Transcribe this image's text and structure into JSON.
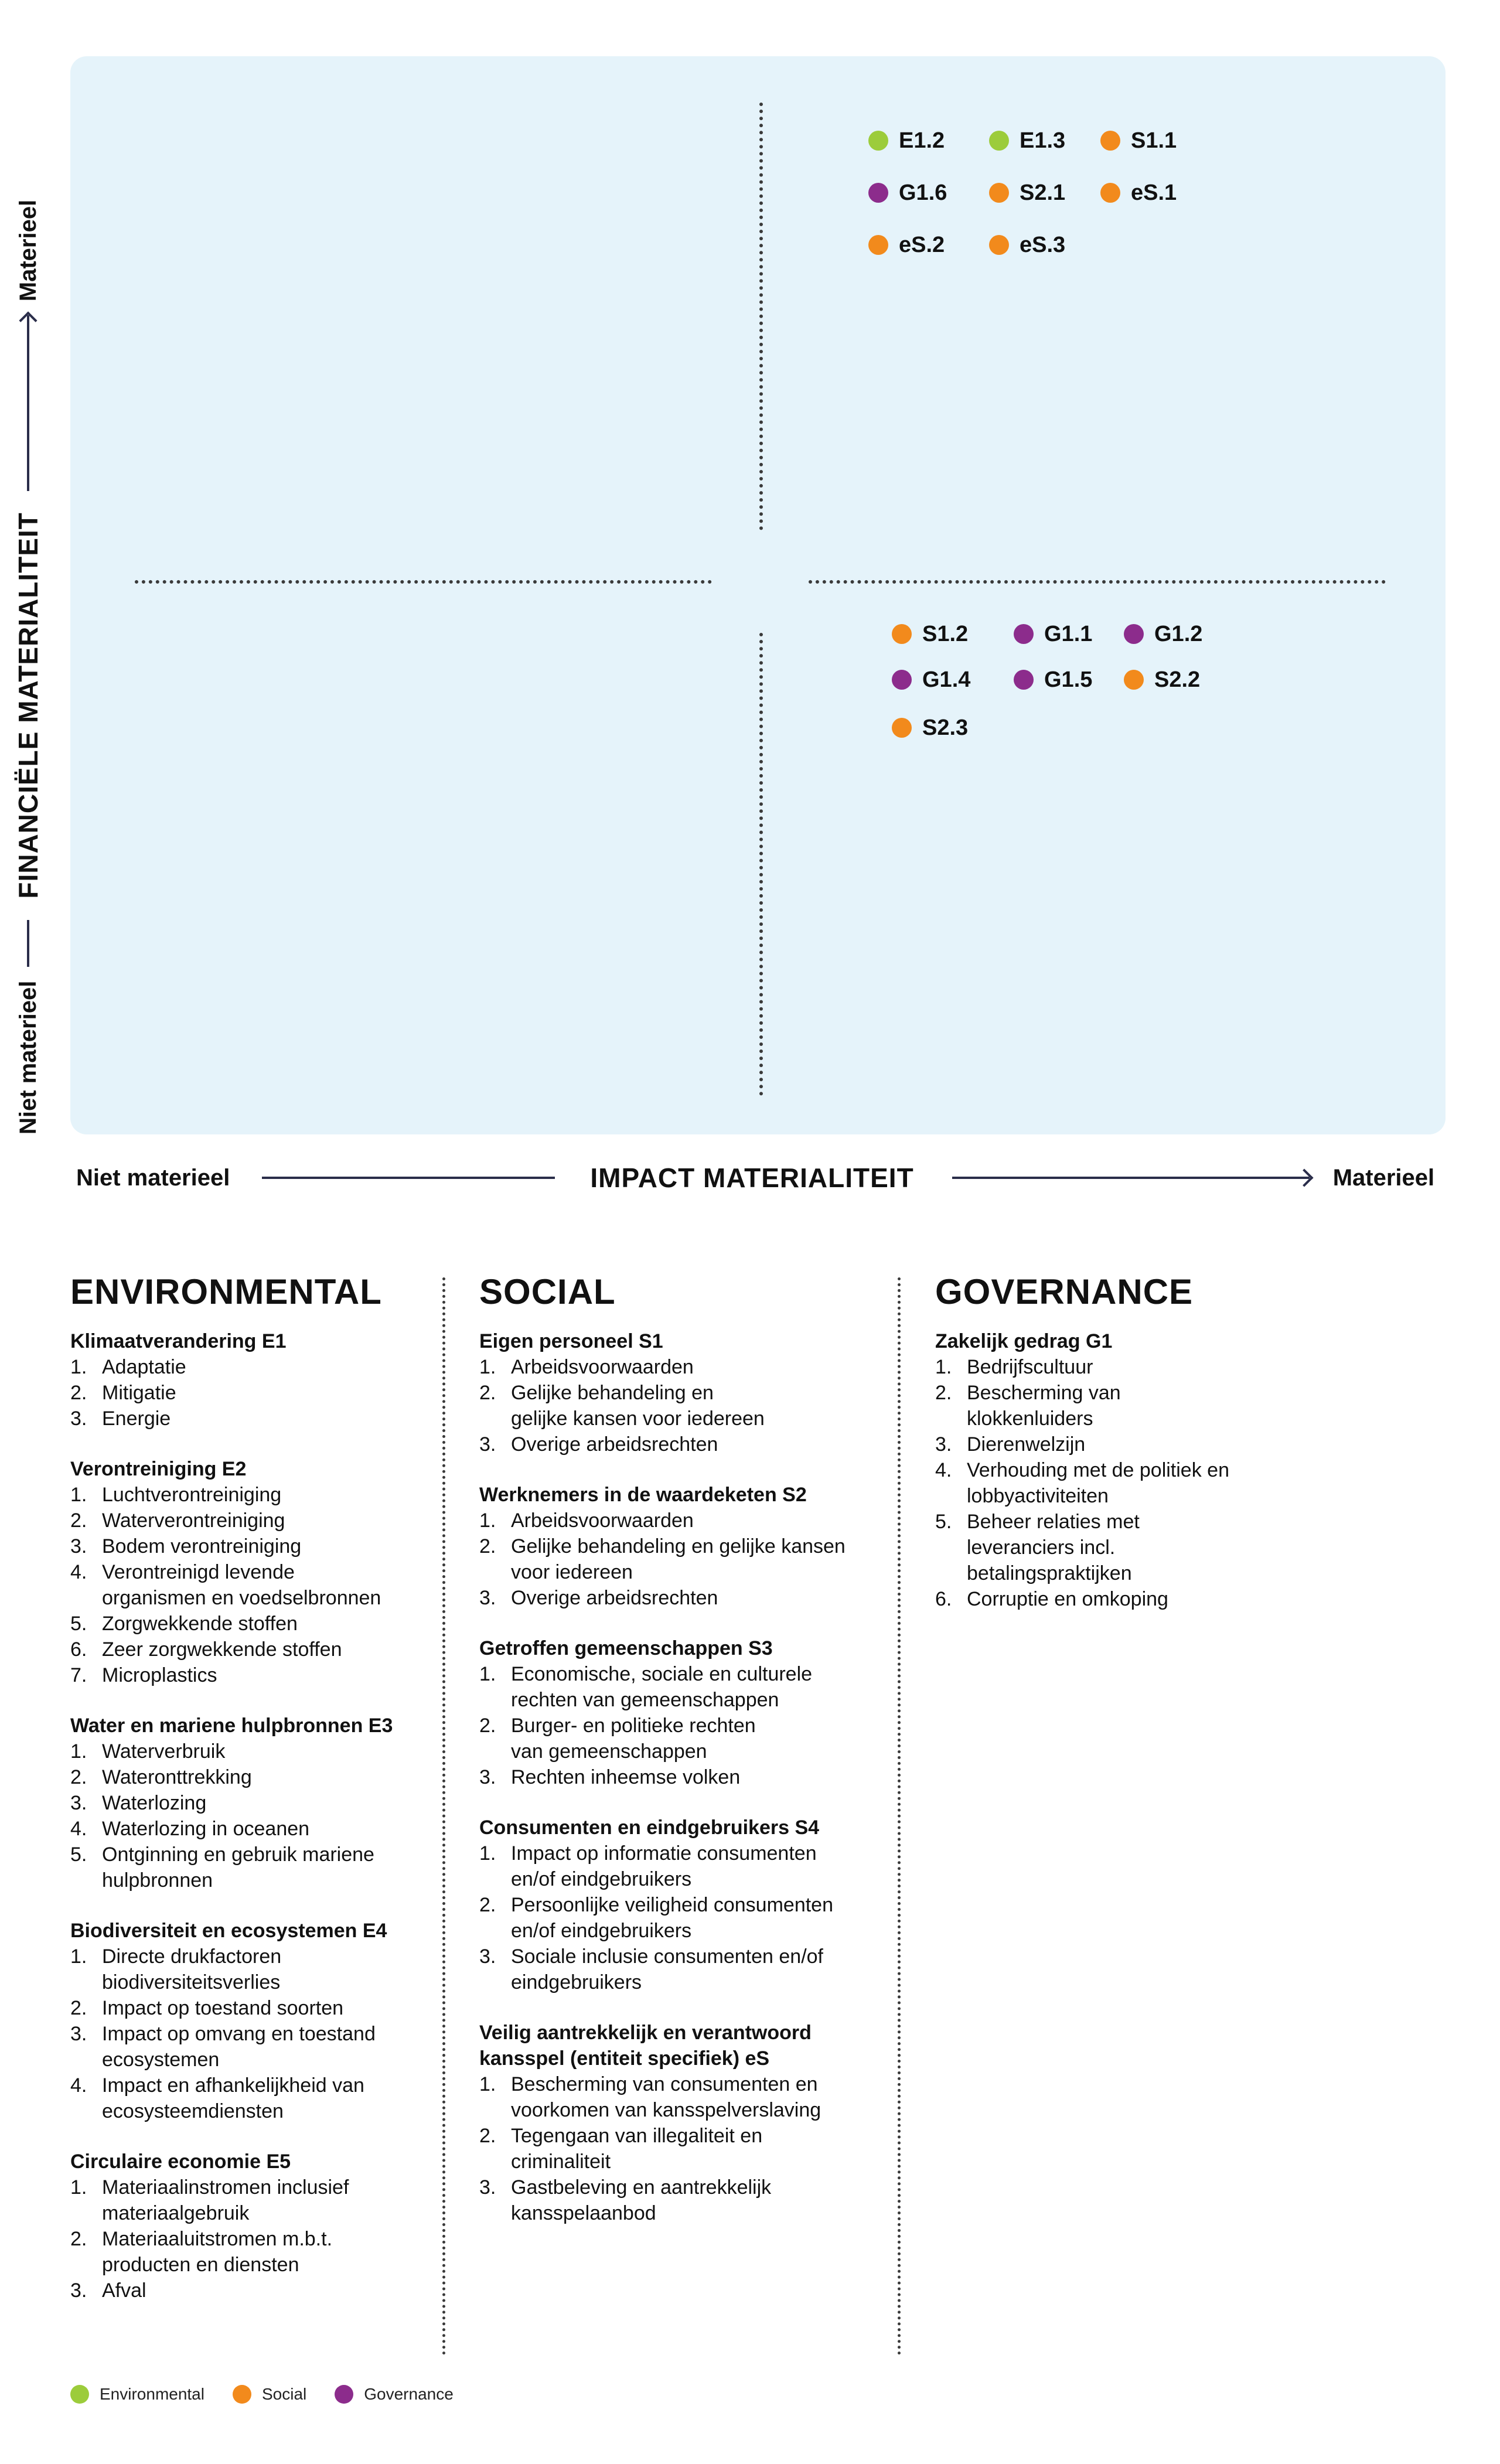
{
  "colors": {
    "environmental": "#9ccc3b",
    "social": "#f28a1c",
    "governance": "#8c2c8c",
    "panel": "#e5f3fa",
    "axis_line": "#2a2d4a"
  },
  "axes": {
    "y_title": "FINANCIËLE MATERIALITEIT",
    "y_low": "Niet materieel",
    "y_high": "Materieel",
    "x_title": "IMPACT MATERIALITEIT",
    "x_low": "Niet materieel",
    "x_high": "Materieel"
  },
  "chart_data": {
    "type": "scatter",
    "xlabel": "IMPACT MATERIALITEIT",
    "ylabel": "FINANCIËLE MATERIALITEIT",
    "quadrants": "2x2",
    "series": [
      {
        "name": "Environmental",
        "points": [
          "E1.2",
          "E1.3"
        ]
      },
      {
        "name": "Social",
        "points": [
          "S1.1",
          "S2.1",
          "eS.1",
          "eS.2",
          "eS.3",
          "S1.2",
          "S2.2",
          "S2.3"
        ]
      },
      {
        "name": "Governance",
        "points": [
          "G1.6",
          "G1.1",
          "G1.2",
          "G1.4",
          "G1.5"
        ]
      }
    ],
    "topics": [
      {
        "code": "E1.2",
        "category": "environmental",
        "quadrant": "top-right"
      },
      {
        "code": "E1.3",
        "category": "environmental",
        "quadrant": "top-right"
      },
      {
        "code": "S1.1",
        "category": "social",
        "quadrant": "top-right"
      },
      {
        "code": "G1.6",
        "category": "governance",
        "quadrant": "top-right"
      },
      {
        "code": "S2.1",
        "category": "social",
        "quadrant": "top-right"
      },
      {
        "code": "eS.1",
        "category": "social",
        "quadrant": "top-right"
      },
      {
        "code": "eS.2",
        "category": "social",
        "quadrant": "top-right"
      },
      {
        "code": "eS.3",
        "category": "social",
        "quadrant": "top-right"
      },
      {
        "code": "S1.2",
        "category": "social",
        "quadrant": "bottom-right"
      },
      {
        "code": "G1.1",
        "category": "governance",
        "quadrant": "bottom-right"
      },
      {
        "code": "G1.2",
        "category": "governance",
        "quadrant": "bottom-right"
      },
      {
        "code": "G1.4",
        "category": "governance",
        "quadrant": "bottom-right"
      },
      {
        "code": "G1.5",
        "category": "governance",
        "quadrant": "bottom-right"
      },
      {
        "code": "S2.2",
        "category": "social",
        "quadrant": "bottom-right"
      },
      {
        "code": "S2.3",
        "category": "social",
        "quadrant": "bottom-right"
      }
    ]
  },
  "columns": [
    {
      "title": "ENVIRONMENTAL",
      "groups": [
        {
          "title": "Klimaatverandering E1",
          "items": [
            {
              "n": "1.",
              "t": "Adaptatie"
            },
            {
              "n": "2.",
              "t": "Mitigatie"
            },
            {
              "n": "3.",
              "t": "Energie"
            }
          ]
        },
        {
          "title": "Verontreiniging E2",
          "items": [
            {
              "n": "1.",
              "t": "Luchtverontreiniging"
            },
            {
              "n": "2.",
              "t": "Waterverontreiniging"
            },
            {
              "n": "3.",
              "t": "Bodem verontreiniging"
            },
            {
              "n": "4.",
              "t": "Verontreinigd levende\norganismen en voedselbronnen"
            },
            {
              "n": "5.",
              "t": "Zorgwekkende stoffen"
            },
            {
              "n": "6.",
              "t": "Zeer zorgwekkende stoffen"
            },
            {
              "n": "7.",
              "t": "Microplastics"
            }
          ]
        },
        {
          "title": "Water en mariene hulpbronnen E3",
          "items": [
            {
              "n": "1.",
              "t": "Waterverbruik"
            },
            {
              "n": "2.",
              "t": "Wateronttrekking"
            },
            {
              "n": "3.",
              "t": "Waterlozing"
            },
            {
              "n": "4.",
              "t": "Waterlozing in oceanen"
            },
            {
              "n": "5.",
              "t": "Ontginning en gebruik mariene\nhulpbronnen"
            }
          ]
        },
        {
          "title": "Biodiversiteit en ecosystemen E4",
          "items": [
            {
              "n": "1.",
              "t": "Directe drukfactoren\nbiodiversiteitsverlies"
            },
            {
              "n": "2.",
              "t": "Impact op toestand soorten"
            },
            {
              "n": "3.",
              "t": "Impact op omvang en toestand\necosystemen"
            },
            {
              "n": "4.",
              "t": "Impact en afhankelijkheid van\necosysteemdiensten"
            }
          ]
        },
        {
          "title": "Circulaire economie E5",
          "items": [
            {
              "n": "1.",
              "t": "Materiaalinstromen inclusief\nmateriaalgebruik"
            },
            {
              "n": "2.",
              "t": "Materiaaluitstromen m.b.t.\nproducten en diensten"
            },
            {
              "n": "3.",
              "t": "Afval"
            }
          ]
        }
      ]
    },
    {
      "title": "SOCIAL",
      "groups": [
        {
          "title": "Eigen personeel S1",
          "items": [
            {
              "n": "1.",
              "t": "Arbeidsvoorwaarden"
            },
            {
              "n": "2.",
              "t": "Gelijke behandeling en\ngelijke kansen voor iedereen"
            },
            {
              "n": "3.",
              "t": "Overige arbeidsrechten"
            }
          ]
        },
        {
          "title": "Werknemers in de waardeketen S2",
          "items": [
            {
              "n": "1.",
              "t": "Arbeidsvoorwaarden"
            },
            {
              "n": "2.",
              "t": "Gelijke behandeling en gelijke kansen\nvoor iedereen"
            },
            {
              "n": "3.",
              "t": "Overige arbeidsrechten"
            }
          ]
        },
        {
          "title": "Getroffen gemeenschappen S3",
          "items": [
            {
              "n": "1.",
              "t": "Economische, sociale en culturele\nrechten van gemeenschappen"
            },
            {
              "n": "2.",
              "t": "Burger- en politieke rechten\nvan gemeenschappen"
            },
            {
              "n": "3.",
              "t": "Rechten inheemse volken"
            }
          ]
        },
        {
          "title": "Consumenten en eindgebruikers S4",
          "items": [
            {
              "n": "1.",
              "t": "Impact op informatie consumenten\nen/of eindgebruikers"
            },
            {
              "n": "2.",
              "t": "Persoonlijke veiligheid consumenten\nen/of eindgebruikers"
            },
            {
              "n": "3.",
              "t": "Sociale inclusie consumenten en/of\neindgebruikers"
            }
          ]
        },
        {
          "title": "Veilig aantrekkelijk en verantwoord\nkansspel (entiteit specifiek) eS",
          "items": [
            {
              "n": "1.",
              "t": "Bescherming van consumenten en\nvoorkomen van kansspelverslaving"
            },
            {
              "n": "2.",
              "t": "Tegengaan van illegaliteit en\ncriminaliteit"
            },
            {
              "n": "3.",
              "t": "Gastbeleving en aantrekkelijk\nkansspelaanbod"
            }
          ]
        }
      ]
    },
    {
      "title": "GOVERNANCE",
      "groups": [
        {
          "title": "Zakelijk gedrag G1",
          "items": [
            {
              "n": "1.",
              "t": "Bedrijfscultuur"
            },
            {
              "n": "2.",
              "t": "Bescherming van\nklokkenluiders"
            },
            {
              "n": "3.",
              "t": "Dierenwelzijn"
            },
            {
              "n": "4.",
              "t": "Verhouding met de politiek en\nlobbyactiviteiten"
            },
            {
              "n": "5.",
              "t": "Beheer relaties met\nleveranciers incl.\nbetalingspraktijken"
            },
            {
              "n": "6.",
              "t": "Corruptie en omkoping"
            }
          ]
        }
      ]
    }
  ],
  "legend": [
    {
      "label": "Environmental",
      "category": "environmental"
    },
    {
      "label": "Social",
      "category": "social"
    },
    {
      "label": "Governance",
      "category": "governance"
    }
  ]
}
